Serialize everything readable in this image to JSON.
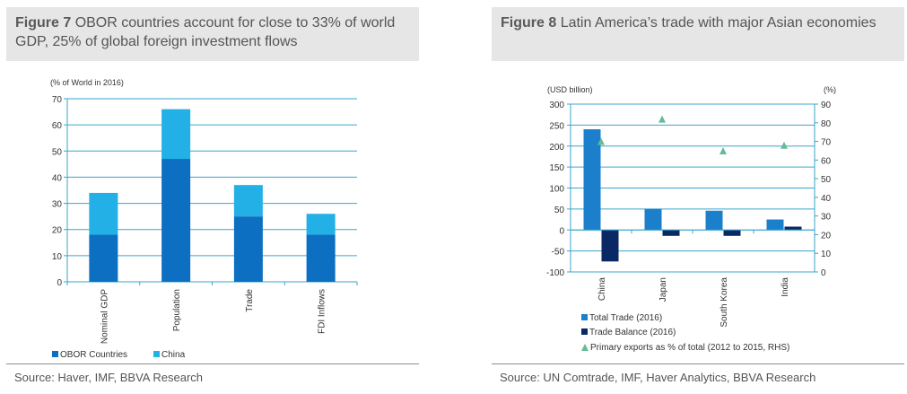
{
  "figure7": {
    "number": "Figure 7",
    "title": "OBOR countries account for close to 33% of world GDP, 25% of global foreign investment flows",
    "source": "Source:  Haver, IMF, BBVA Research"
  },
  "figure8": {
    "number": "Figure 8",
    "title": "Latin America’s trade with major Asian economies",
    "source": "Source:  UN Comtrade, IMF, Haver Analytics, BBVA Research"
  },
  "colors": {
    "obor": "#0c6fc1",
    "china": "#22b0e6",
    "total_trade": "#1b7fcc",
    "trade_balance": "#0a2864",
    "primary_exports": "#66bb96",
    "axis": "#3aa6cc",
    "grid": "#3aa6cc"
  },
  "chart_data": [
    {
      "type": "bar",
      "stacked": true,
      "title": "",
      "ylabel": "(% of World in 2016)",
      "categories": [
        "Nominal GDP",
        "Population",
        "Trade",
        "FDI Inflows"
      ],
      "series": [
        {
          "name": "OBOR Countries",
          "values": [
            18,
            47,
            25,
            18
          ]
        },
        {
          "name": "China",
          "values": [
            16,
            19,
            12,
            8
          ]
        }
      ],
      "ylim": [
        0,
        70
      ],
      "yticks": [
        "0",
        "10",
        "20",
        "30",
        "40",
        "50",
        "60",
        "70"
      ],
      "grid": true,
      "legend": "bottom-left"
    },
    {
      "type": "bar",
      "title": "",
      "ylabel_left": "(USD billion)",
      "ylabel_right": "(%)",
      "categories": [
        "China",
        "Japan",
        "South Korea",
        "India"
      ],
      "series": [
        {
          "name": "Total Trade (2016)",
          "type": "bar",
          "axis": "left",
          "values": [
            240,
            50,
            46,
            25
          ]
        },
        {
          "name": "Trade Balance (2016)",
          "type": "bar",
          "axis": "left",
          "values": [
            -75,
            -14,
            -14,
            8
          ]
        },
        {
          "name": "Primary exports as % of total (2012 to 2015, RHS)",
          "type": "scatter",
          "axis": "right",
          "values": [
            70,
            82,
            65,
            68
          ]
        }
      ],
      "ylim_left": [
        -100,
        300
      ],
      "ylim_right": [
        0,
        90
      ],
      "yticks_left": [
        "-100",
        "-50",
        "0",
        "50",
        "100",
        "150",
        "200",
        "250",
        "300"
      ],
      "yticks_right": [
        "0",
        "10",
        "20",
        "30",
        "40",
        "50",
        "60",
        "70",
        "80",
        "90"
      ],
      "grid": true,
      "legend": "bottom-left"
    }
  ]
}
